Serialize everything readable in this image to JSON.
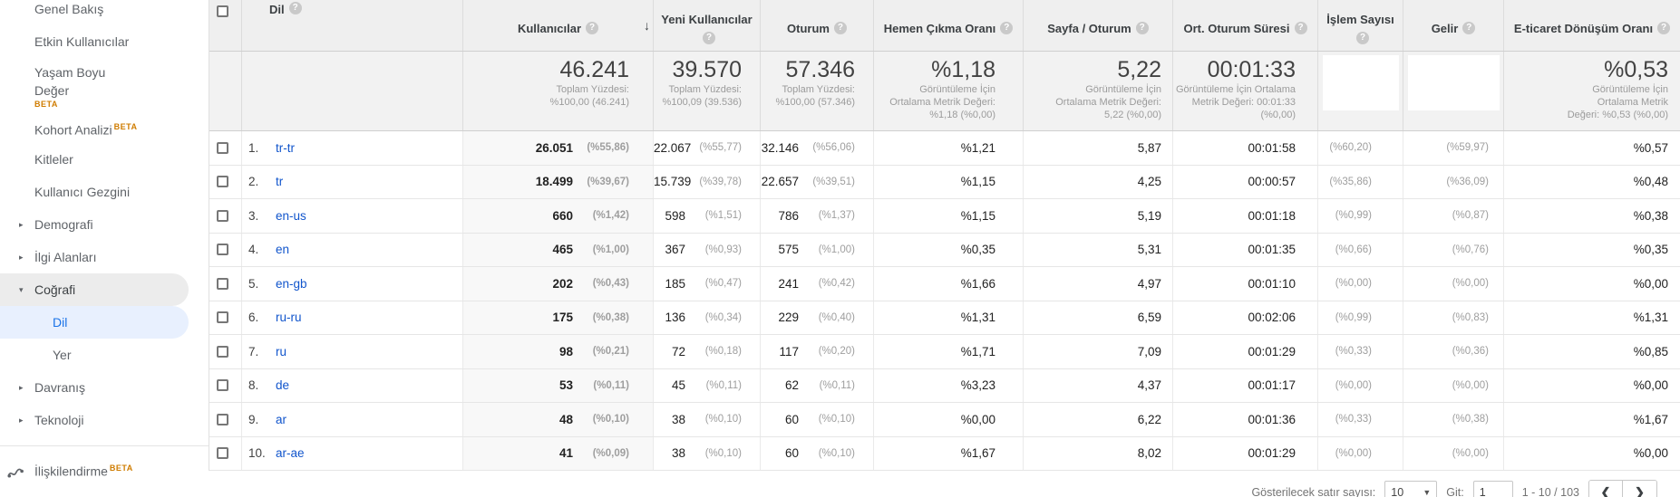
{
  "colors": {
    "link": "#1155cc",
    "active_nav": "#1a73e8",
    "beta": "#cf7c00",
    "header_bg": "#efefef"
  },
  "sidebar": {
    "items": [
      {
        "label": "Genel Bakış"
      },
      {
        "label": "Etkin Kullanıcılar"
      },
      {
        "label": "Yaşam Boyu Değer",
        "label2": "",
        "beta": "BETA",
        "two_line": true,
        "wrap": [
          "Yaşam Boyu",
          "Değer"
        ]
      },
      {
        "label": "Kohort Analizi",
        "beta": "BETA"
      },
      {
        "label": "Kitleler"
      },
      {
        "label": "Kullanıcı Gezgini"
      },
      {
        "label": "Demografi",
        "arrow": "right"
      },
      {
        "label": "İlgi Alanları",
        "arrow": "right"
      },
      {
        "label": "Coğrafi",
        "arrow": "down",
        "parent_open": true
      },
      {
        "label": "Dil",
        "sub": true,
        "active": true
      },
      {
        "label": "Yer",
        "sub": true
      },
      {
        "label": "Davranış",
        "arrow": "right"
      },
      {
        "label": "Teknoloji",
        "arrow": "right"
      }
    ],
    "footer_item": {
      "label": "İlişkilendirme",
      "beta": "BETA",
      "icon": "attribution-icon"
    }
  },
  "table": {
    "dimension_header": "Dil",
    "columns": [
      {
        "key": "users",
        "label": "Kullanıcılar",
        "sorted": "desc"
      },
      {
        "key": "new_users",
        "label": "Yeni Kullanıcılar"
      },
      {
        "key": "sessions",
        "label": "Oturum"
      },
      {
        "key": "bounce",
        "label": "Hemen Çıkma Oranı"
      },
      {
        "key": "pages",
        "label": "Sayfa / Oturum"
      },
      {
        "key": "duration",
        "label": "Ort. Oturum Süresi"
      },
      {
        "key": "transactions",
        "label": "İşlem Sayısı"
      },
      {
        "key": "revenue",
        "label": "Gelir"
      },
      {
        "key": "ecom",
        "label": "E-ticaret Dönüşüm Oranı"
      }
    ],
    "summary": {
      "users": {
        "value": "46.241",
        "lines": [
          "Toplam Yüzdesi:",
          "%100,00 (46.241)"
        ]
      },
      "new_users": {
        "value": "39.570",
        "lines": [
          "Toplam Yüzdesi:",
          "%100,09 (39.536)"
        ]
      },
      "sessions": {
        "value": "57.346",
        "lines": [
          "Toplam Yüzdesi:",
          "%100,00 (57.346)"
        ]
      },
      "bounce": {
        "value": "%1,18",
        "lines": [
          "Görüntüleme İçin",
          "Ortalama Metrik Değeri:",
          "%1,18 (%0,00)"
        ]
      },
      "pages": {
        "value": "5,22",
        "lines": [
          "Görüntüleme İçin",
          "Ortalama Metrik Değeri:",
          "5,22 (%0,00)"
        ]
      },
      "duration": {
        "value": "00:01:33",
        "lines": [
          "Görüntüleme İçin Ortalama",
          "Metrik Değeri: 00:01:33",
          "(%0,00)"
        ]
      },
      "transactions": {
        "redacted": true
      },
      "revenue": {
        "redacted": true
      },
      "ecom": {
        "value": "%0,53",
        "lines": [
          "Görüntüleme İçin",
          "Ortalama Metrik",
          "Değeri: %0,53 (%0,00)"
        ]
      }
    },
    "rows": [
      {
        "num": "1.",
        "lang": "tr-tr",
        "users": "26.051",
        "users_pct": "(%55,86)",
        "new_users": "22.067",
        "new_pct": "(%55,77)",
        "sessions": "32.146",
        "sess_pct": "(%56,06)",
        "bounce": "%1,21",
        "pages": "5,87",
        "duration": "00:01:58",
        "trans_pct": "(%60,20)",
        "rev_pct": "(%59,97)",
        "ecom": "%0,57"
      },
      {
        "num": "2.",
        "lang": "tr",
        "users": "18.499",
        "users_pct": "(%39,67)",
        "new_users": "15.739",
        "new_pct": "(%39,78)",
        "sessions": "22.657",
        "sess_pct": "(%39,51)",
        "bounce": "%1,15",
        "pages": "4,25",
        "duration": "00:00:57",
        "trans_pct": "(%35,86)",
        "rev_pct": "(%36,09)",
        "ecom": "%0,48"
      },
      {
        "num": "3.",
        "lang": "en-us",
        "users": "660",
        "users_pct": "(%1,42)",
        "new_users": "598",
        "new_pct": "(%1,51)",
        "sessions": "786",
        "sess_pct": "(%1,37)",
        "bounce": "%1,15",
        "pages": "5,19",
        "duration": "00:01:18",
        "trans_pct": "(%0,99)",
        "rev_pct": "(%0,87)",
        "ecom": "%0,38"
      },
      {
        "num": "4.",
        "lang": "en",
        "users": "465",
        "users_pct": "(%1,00)",
        "new_users": "367",
        "new_pct": "(%0,93)",
        "sessions": "575",
        "sess_pct": "(%1,00)",
        "bounce": "%0,35",
        "pages": "5,31",
        "duration": "00:01:35",
        "trans_pct": "(%0,66)",
        "rev_pct": "(%0,76)",
        "ecom": "%0,35"
      },
      {
        "num": "5.",
        "lang": "en-gb",
        "users": "202",
        "users_pct": "(%0,43)",
        "new_users": "185",
        "new_pct": "(%0,47)",
        "sessions": "241",
        "sess_pct": "(%0,42)",
        "bounce": "%1,66",
        "pages": "4,97",
        "duration": "00:01:10",
        "trans_pct": "(%0,00)",
        "rev_pct": "(%0,00)",
        "ecom": "%0,00"
      },
      {
        "num": "6.",
        "lang": "ru-ru",
        "users": "175",
        "users_pct": "(%0,38)",
        "new_users": "136",
        "new_pct": "(%0,34)",
        "sessions": "229",
        "sess_pct": "(%0,40)",
        "bounce": "%1,31",
        "pages": "6,59",
        "duration": "00:02:06",
        "trans_pct": "(%0,99)",
        "rev_pct": "(%0,83)",
        "ecom": "%1,31"
      },
      {
        "num": "7.",
        "lang": "ru",
        "users": "98",
        "users_pct": "(%0,21)",
        "new_users": "72",
        "new_pct": "(%0,18)",
        "sessions": "117",
        "sess_pct": "(%0,20)",
        "bounce": "%1,71",
        "pages": "7,09",
        "duration": "00:01:29",
        "trans_pct": "(%0,33)",
        "rev_pct": "(%0,36)",
        "ecom": "%0,85"
      },
      {
        "num": "8.",
        "lang": "de",
        "users": "53",
        "users_pct": "(%0,11)",
        "new_users": "45",
        "new_pct": "(%0,11)",
        "sessions": "62",
        "sess_pct": "(%0,11)",
        "bounce": "%3,23",
        "pages": "4,37",
        "duration": "00:01:17",
        "trans_pct": "(%0,00)",
        "rev_pct": "(%0,00)",
        "ecom": "%0,00"
      },
      {
        "num": "9.",
        "lang": "ar",
        "users": "48",
        "users_pct": "(%0,10)",
        "new_users": "38",
        "new_pct": "(%0,10)",
        "sessions": "60",
        "sess_pct": "(%0,10)",
        "bounce": "%0,00",
        "pages": "6,22",
        "duration": "00:01:36",
        "trans_pct": "(%0,33)",
        "rev_pct": "(%0,38)",
        "ecom": "%1,67"
      },
      {
        "num": "10.",
        "lang": "ar-ae",
        "users": "41",
        "users_pct": "(%0,09)",
        "new_users": "38",
        "new_pct": "(%0,10)",
        "sessions": "60",
        "sess_pct": "(%0,10)",
        "bounce": "%1,67",
        "pages": "8,02",
        "duration": "00:01:29",
        "trans_pct": "(%0,00)",
        "rev_pct": "(%0,00)",
        "ecom": "%0,00"
      }
    ]
  },
  "footer": {
    "rows_label": "Gösterilecek satır sayısı:",
    "rows_value": "10",
    "goto_label": "Git:",
    "goto_value": "1",
    "range": "1 - 10 / 103"
  }
}
